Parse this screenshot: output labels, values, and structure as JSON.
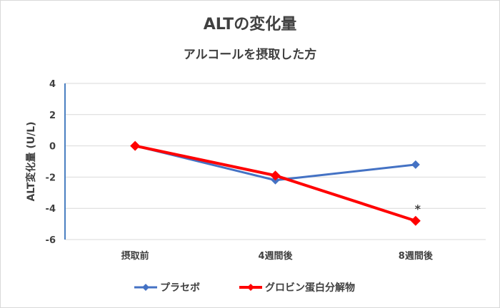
{
  "chart_data": {
    "type": "line",
    "title": "ALTの変化量",
    "subtitle": "アルコールを摂取した方",
    "xlabel": "",
    "ylabel": "ALT変化量 (U/L)",
    "categories": [
      "摂取前",
      "4週間後",
      "8週間後"
    ],
    "ylim": [
      -6,
      4
    ],
    "yticks": [
      -6,
      -4,
      -2,
      0,
      2,
      4
    ],
    "grid": true,
    "legend": "bottom",
    "series": [
      {
        "name": "プラセボ",
        "values": [
          0,
          -2.2,
          -1.2
        ],
        "color": "#4472c4"
      },
      {
        "name": "グロビン蛋白分解物",
        "values": [
          0,
          -1.9,
          -4.8
        ],
        "color": "#ff0000"
      }
    ],
    "annotations": [
      {
        "text": "*",
        "category": "8週間後",
        "value": -4.8
      }
    ]
  }
}
